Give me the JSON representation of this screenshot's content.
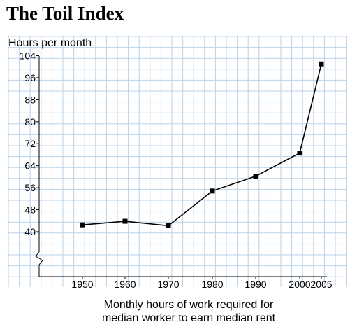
{
  "chart_data": {
    "type": "line",
    "title": "The Toil Index",
    "ylabel": "Hours per month",
    "xlabel_lines": [
      "Monthly hours of work required for",
      "median worker to earn median rent"
    ],
    "x": [
      1950,
      1960,
      1970,
      1980,
      1990,
      2000,
      2005
    ],
    "x_tick_labels": [
      "1950",
      "1960",
      "1970",
      "1980",
      "1990",
      "2000",
      "2005"
    ],
    "y_ticks": [
      40,
      48,
      56,
      64,
      72,
      80,
      88,
      96,
      104
    ],
    "y_tick_labels": [
      "40",
      "48",
      "56",
      "64",
      "72",
      "80",
      "88",
      "96",
      "104"
    ],
    "y_axis_break": true,
    "grid": true,
    "series": [
      {
        "values": [
          42.5,
          43.8,
          42.2,
          54.8,
          60.2,
          68.6,
          101.0
        ]
      }
    ],
    "colors": {
      "grid": "#b9d3ea",
      "line": "#000000",
      "marker": "#000000"
    }
  }
}
